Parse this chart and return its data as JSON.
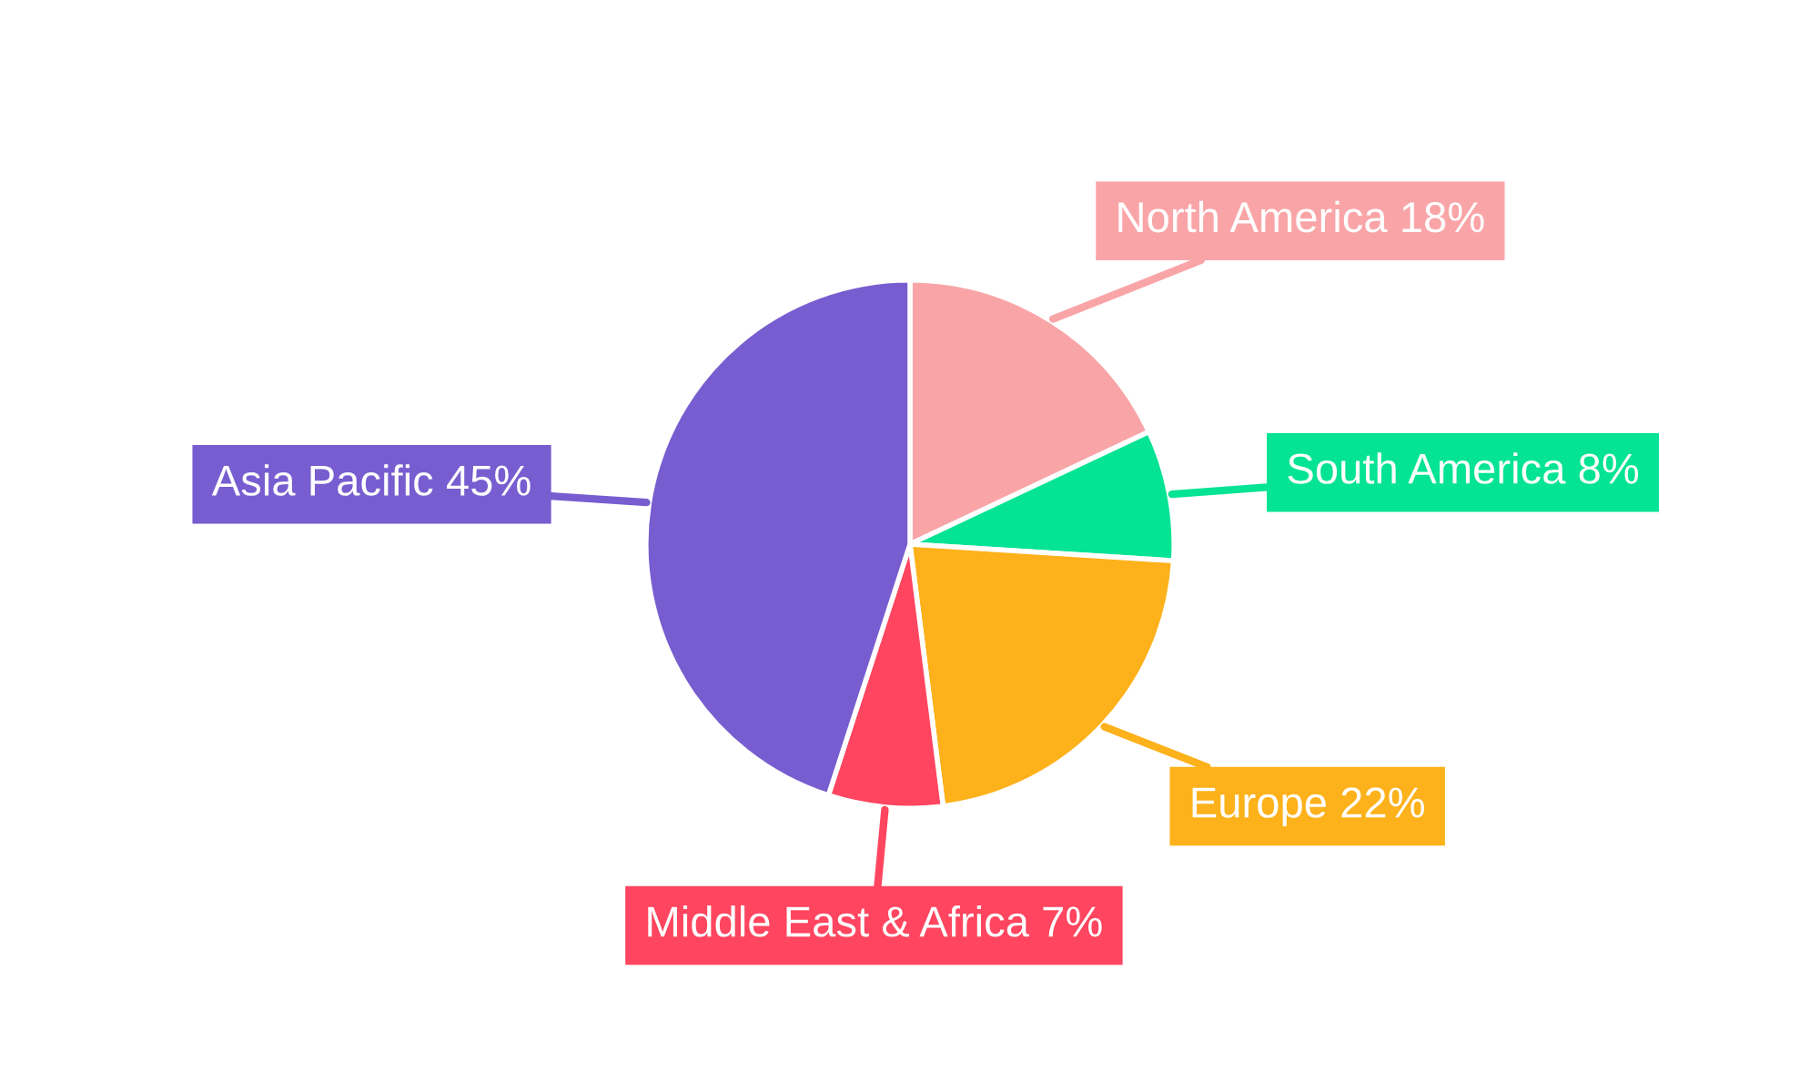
{
  "chart_data": {
    "type": "pie",
    "categories": [
      "North America",
      "South America",
      "Europe",
      "Middle East & Africa",
      "Asia Pacific"
    ],
    "values": [
      18,
      8,
      22,
      7,
      45
    ],
    "value_labels": [
      "18%",
      "8%",
      "22%",
      "7%",
      "45%"
    ],
    "colors": [
      "#f9a5a8",
      "#05e395",
      "#fdb11a",
      "#ff455f",
      "#775dd0"
    ]
  }
}
